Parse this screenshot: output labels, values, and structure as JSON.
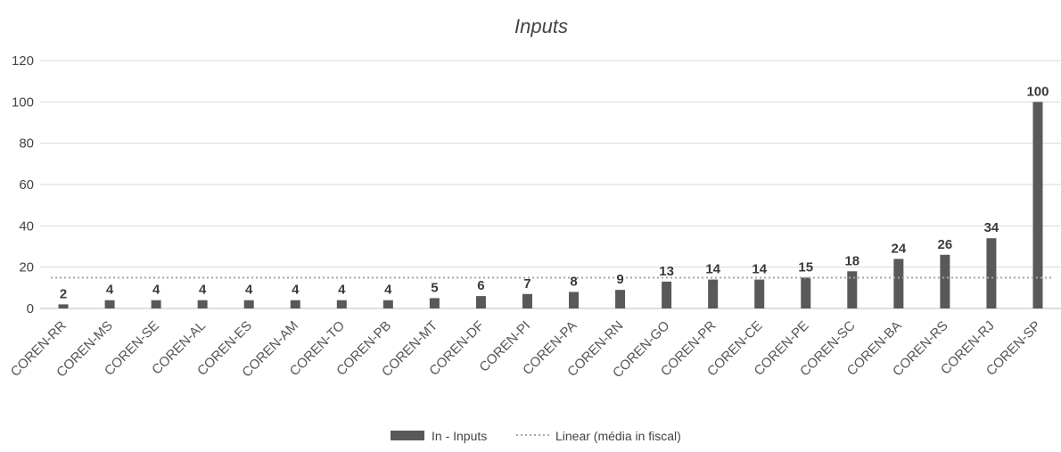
{
  "chart_data": {
    "type": "bar",
    "title": "Inputs",
    "xlabel": "",
    "ylabel": "",
    "ylim": [
      0,
      120
    ],
    "yticks": [
      0,
      20,
      40,
      60,
      80,
      100,
      120
    ],
    "grid": true,
    "legend_position": "bottom",
    "categories": [
      "COREN-RR",
      "COREN-MS",
      "COREN-SE",
      "COREN-AL",
      "COREN-ES",
      "COREN-AM",
      "COREN-TO",
      "COREN-PB",
      "COREN-MT",
      "COREN-DF",
      "COREN-PI",
      "COREN-PA",
      "COREN-RN",
      "COREN-GO",
      "COREN-PR",
      "COREN-CE",
      "COREN-PE",
      "COREN-SC",
      "COREN-BA",
      "COREN-RS",
      "COREN-RJ",
      "COREN-SP"
    ],
    "series": [
      {
        "name": "In - Inputs",
        "kind": "bar",
        "color": "#595959",
        "values": [
          2,
          4,
          4,
          4,
          4,
          4,
          4,
          4,
          5,
          6,
          7,
          8,
          9,
          13,
          14,
          14,
          15,
          18,
          24,
          26,
          34,
          100
        ]
      },
      {
        "name": "Linear (média in fiscal)",
        "kind": "dotted-line",
        "color": "#a6a6a6",
        "value": 14.9
      }
    ]
  }
}
